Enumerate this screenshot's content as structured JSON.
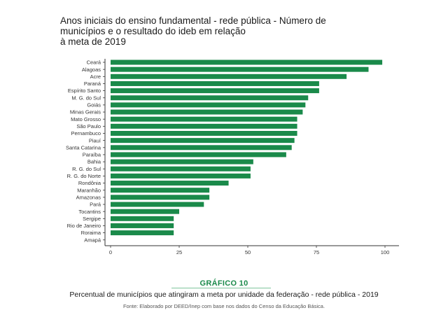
{
  "chart_data": {
    "type": "bar",
    "orientation": "horizontal",
    "title": "Anos iniciais do ensino fundamental - rede pública - Número de\nmunicípios e  o resultado do ideb em relação\nà meta de 2019",
    "categories": [
      "Ceará",
      "Alagoas",
      "Acre",
      "Paraná",
      "Espírito Santo",
      "M. G. do Sul",
      "Goiás",
      "Minas Gerais",
      "Mato Grosso",
      "São Paulo",
      "Pernambuco",
      "Piauí",
      "Santa Catarina",
      "Paraíba",
      "Bahia",
      "R. G. do Sul",
      "R. G. do Norte",
      "Rondônia",
      "Maranhão",
      "Amazonas",
      "Pará",
      "Tocantins",
      "Sergipe",
      "Rio de Janeiro",
      "Roraima",
      "Amapá"
    ],
    "values": [
      99,
      94,
      86,
      76,
      76,
      72,
      71,
      70,
      68,
      68,
      68,
      67,
      66,
      64,
      52,
      51,
      51,
      43,
      36,
      36,
      34,
      25,
      23,
      23,
      23,
      0
    ],
    "xlim": [
      0,
      100
    ],
    "xticks": [
      0,
      25,
      50,
      75,
      100
    ],
    "bar_color": "#1a8a4a",
    "grid": false
  },
  "figure": {
    "label": "GRÁFICO 10",
    "caption": "Percentual de municípios que atingiram a meta por unidade da federação - rede pública - 2019",
    "source": "Fonte: Elaborado por DEED/Inep com base nos dados do Censo da Educação Básica."
  }
}
